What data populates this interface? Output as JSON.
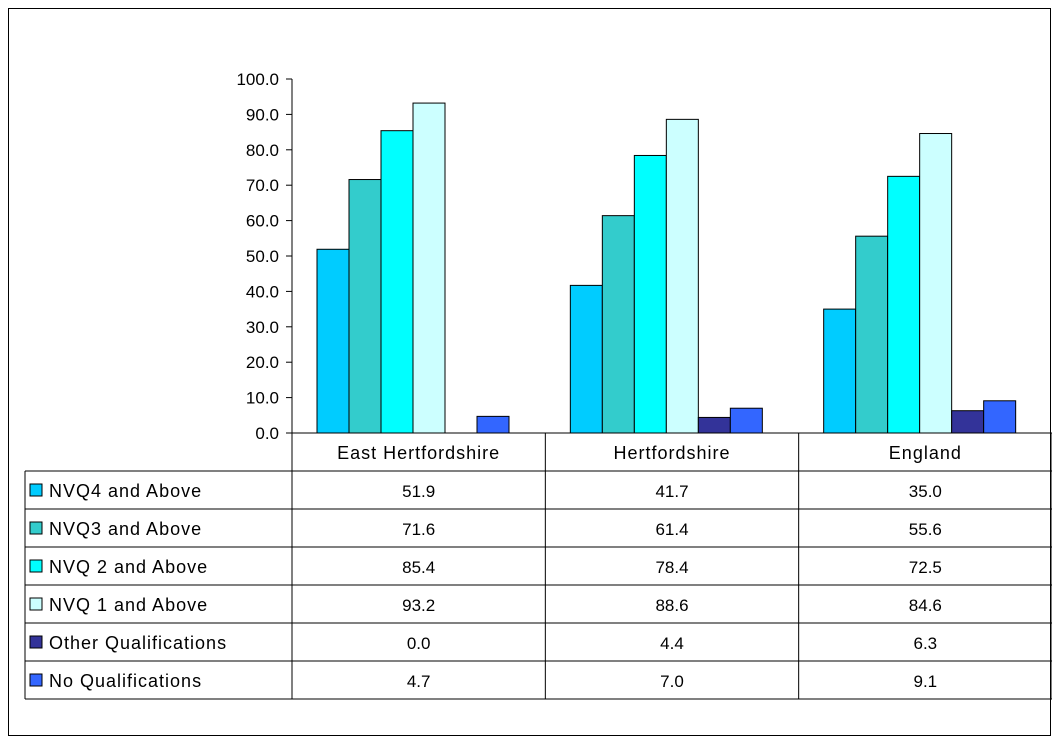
{
  "chart_data": {
    "type": "bar",
    "categories": [
      "East Hertfordshire",
      "Hertfordshire",
      "England"
    ],
    "series": [
      {
        "name": "NVQ4 and Above",
        "values": [
          51.9,
          41.7,
          35.0
        ],
        "value_labels": [
          "51.9",
          "41.7",
          "35.0"
        ],
        "color": "#00CCFF"
      },
      {
        "name": "NVQ3 and Above",
        "values": [
          71.6,
          61.4,
          55.6
        ],
        "value_labels": [
          "71.6",
          "61.4",
          "55.6"
        ],
        "color": "#33CCCC"
      },
      {
        "name": "NVQ 2 and Above",
        "values": [
          85.4,
          78.4,
          72.5
        ],
        "value_labels": [
          "85.4",
          "78.4",
          "72.5"
        ],
        "color": "#00FFFF"
      },
      {
        "name": "NVQ 1 and Above",
        "values": [
          93.2,
          88.6,
          84.6
        ],
        "value_labels": [
          "93.2",
          "88.6",
          "84.6"
        ],
        "color": "#CCFFFF"
      },
      {
        "name": "Other Qualifications",
        "values": [
          0.0,
          4.4,
          6.3
        ],
        "value_labels": [
          "0.0",
          "4.4",
          "6.3"
        ],
        "color": "#333399"
      },
      {
        "name": "No Qualifications",
        "values": [
          4.7,
          7.0,
          9.1
        ],
        "value_labels": [
          "4.7",
          "7.0",
          "9.1"
        ],
        "color": "#3366FF"
      }
    ],
    "yticks": [
      "0.0",
      "10.0",
      "20.0",
      "30.0",
      "40.0",
      "50.0",
      "60.0",
      "70.0",
      "80.0",
      "90.0",
      "100.0"
    ],
    "ylim": [
      0,
      100
    ],
    "legend": "data-table-below",
    "grid": false
  }
}
